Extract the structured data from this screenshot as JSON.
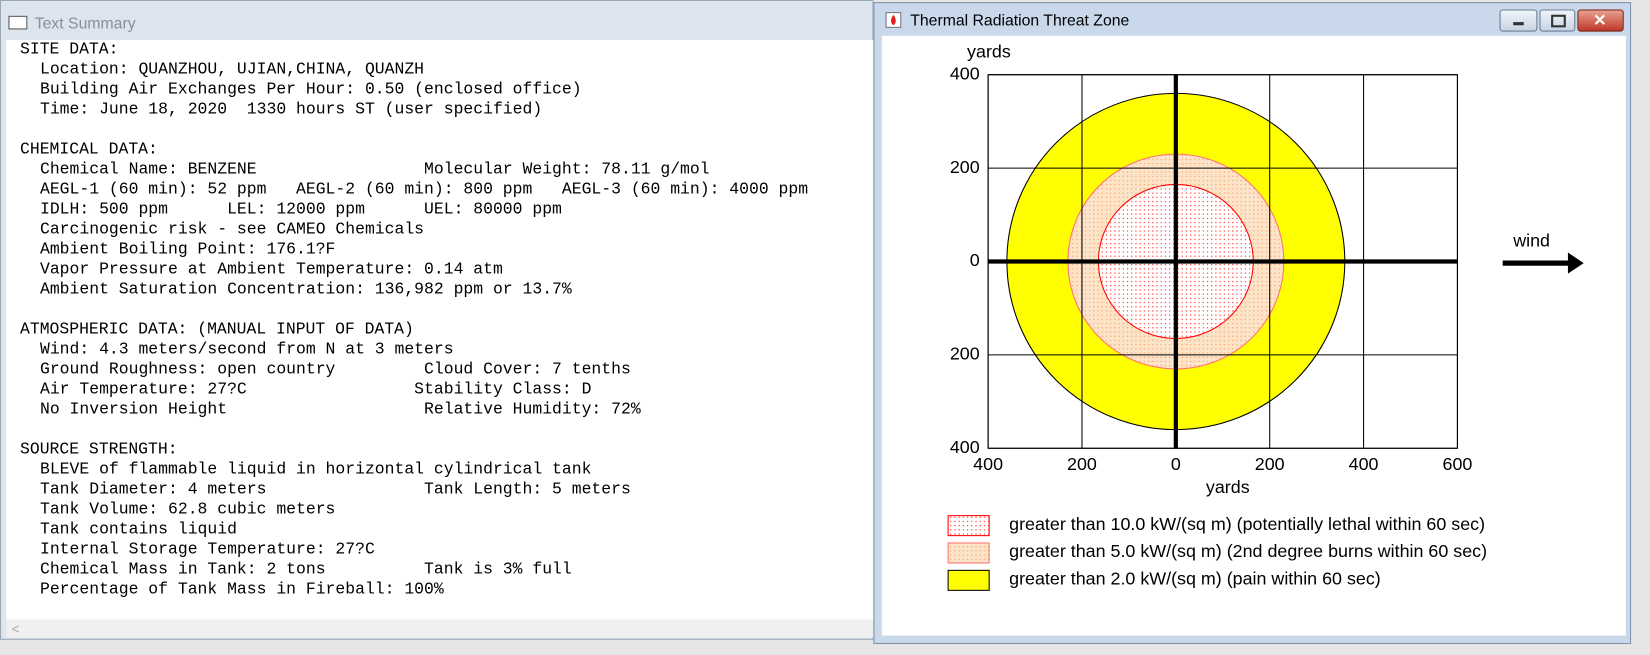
{
  "text_summary": {
    "title": "Text Summary",
    "sections": [
      {
        "heading": "SITE DATA:",
        "lines": [
          "Location: QUANZHOU, UJIAN,CHINA, QUANZH",
          "Building Air Exchanges Per Hour: 0.50 (enclosed office)",
          "Time: June 18, 2020  1330 hours ST (user specified)"
        ]
      },
      {
        "heading": "CHEMICAL DATA:",
        "lines": [
          "Chemical Name: BENZENE                 Molecular Weight: 78.11 g/mol",
          "AEGL-1 (60 min): 52 ppm   AEGL-2 (60 min): 800 ppm   AEGL-3 (60 min): 4000 ppm",
          "IDLH: 500 ppm      LEL: 12000 ppm      UEL: 80000 ppm",
          "Carcinogenic risk - see CAMEO Chemicals",
          "Ambient Boiling Point: 176.1?F",
          "Vapor Pressure at Ambient Temperature: 0.14 atm",
          "Ambient Saturation Concentration: 136,982 ppm or 13.7%"
        ]
      },
      {
        "heading": "ATMOSPHERIC DATA: (MANUAL INPUT OF DATA)",
        "lines": [
          "Wind: 4.3 meters/second from N at 3 meters",
          "Ground Roughness: open country         Cloud Cover: 7 tenths",
          "Air Temperature: 27?C                 Stability Class: D",
          "No Inversion Height                    Relative Humidity: 72%"
        ]
      },
      {
        "heading": "SOURCE STRENGTH:",
        "lines": [
          "BLEVE of flammable liquid in horizontal cylindrical tank",
          "Tank Diameter: 4 meters                Tank Length: 5 meters",
          "Tank Volume: 62.8 cubic meters",
          "Tank contains liquid",
          "Internal Storage Temperature: 27?C",
          "Chemical Mass in Tank: 2 tons          Tank is 3% full",
          "Percentage of Tank Mass in Fireball: 100%"
        ]
      }
    ]
  },
  "threat_window": {
    "title": "Thermal Radiation Threat Zone"
  },
  "chart_data": {
    "type": "zones",
    "x_label": "yards",
    "y_label": "yards",
    "annotation": "wind",
    "xlim": [
      -400,
      600
    ],
    "ylim": [
      -400,
      400
    ],
    "xticks": [
      {
        "value": -400,
        "label": "400"
      },
      {
        "value": -200,
        "label": "200"
      },
      0,
      200,
      400,
      600
    ],
    "yticks": [
      {
        "value": -400,
        "label": "400"
      },
      {
        "value": -200,
        "label": "200"
      },
      0,
      200,
      400
    ],
    "grid": true,
    "series": [
      {
        "name": "greater than 10.0 kW/(sq m) (potentially lethal within 60 sec)",
        "color": "#ff0000",
        "edge": "#ff0000",
        "background": "#ffffff",
        "pattern": "dots",
        "values": [
          165
        ]
      },
      {
        "name": "greater than 5.0 kW/(sq m) (2nd degree burns within 60 sec)",
        "color": "#f09050",
        "edge": "#ff7070",
        "background": "#fde4c8",
        "pattern": "dots",
        "values": [
          230
        ]
      },
      {
        "name": "greater than 2.0 kW/(sq m) (pain within 60 sec)",
        "color": "#ffff00",
        "edge": "#000000",
        "background": "#ffff00",
        "pattern": "solid",
        "values": [
          360
        ]
      }
    ]
  }
}
